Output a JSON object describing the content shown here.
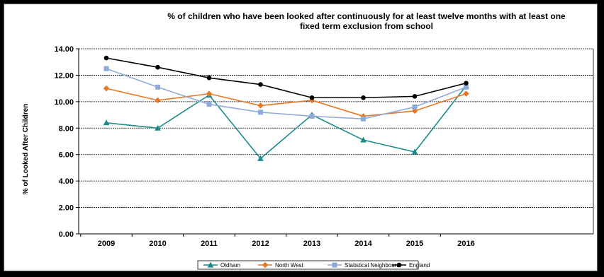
{
  "chart_data": {
    "type": "line",
    "title_line1": "% of children who have been looked after continuously for at least twelve months with at least one",
    "title_line2": "fixed term exclusion from school",
    "xlabel": "",
    "ylabel": "% of Looked After Children",
    "categories": [
      "2009",
      "2010",
      "2011",
      "2012",
      "2013",
      "2014",
      "2015",
      "2016"
    ],
    "y_ticks": [
      "0.00",
      "2.00",
      "4.00",
      "6.00",
      "8.00",
      "10.00",
      "12.00",
      "14.00"
    ],
    "ylim": [
      0,
      14
    ],
    "grid": "horizontal",
    "legend_position": "bottom",
    "series": [
      {
        "name": "Oldham",
        "color": "#1a8a8a",
        "marker": "triangle",
        "values": [
          8.4,
          8.0,
          10.5,
          5.7,
          9.0,
          7.1,
          6.2,
          11.2
        ]
      },
      {
        "name": "North West",
        "color": "#e87722",
        "marker": "diamond",
        "values": [
          11.0,
          10.1,
          10.6,
          9.7,
          10.1,
          8.9,
          9.3,
          10.6
        ]
      },
      {
        "name": "Statistical Neighbours",
        "color": "#8eaadb",
        "marker": "square",
        "values": [
          12.5,
          11.1,
          9.8,
          9.2,
          8.9,
          8.7,
          9.6,
          11.1
        ]
      },
      {
        "name": "England",
        "color": "#000000",
        "marker": "circle",
        "values": [
          13.3,
          12.6,
          11.8,
          11.3,
          10.3,
          10.3,
          10.4,
          11.4
        ]
      }
    ]
  }
}
